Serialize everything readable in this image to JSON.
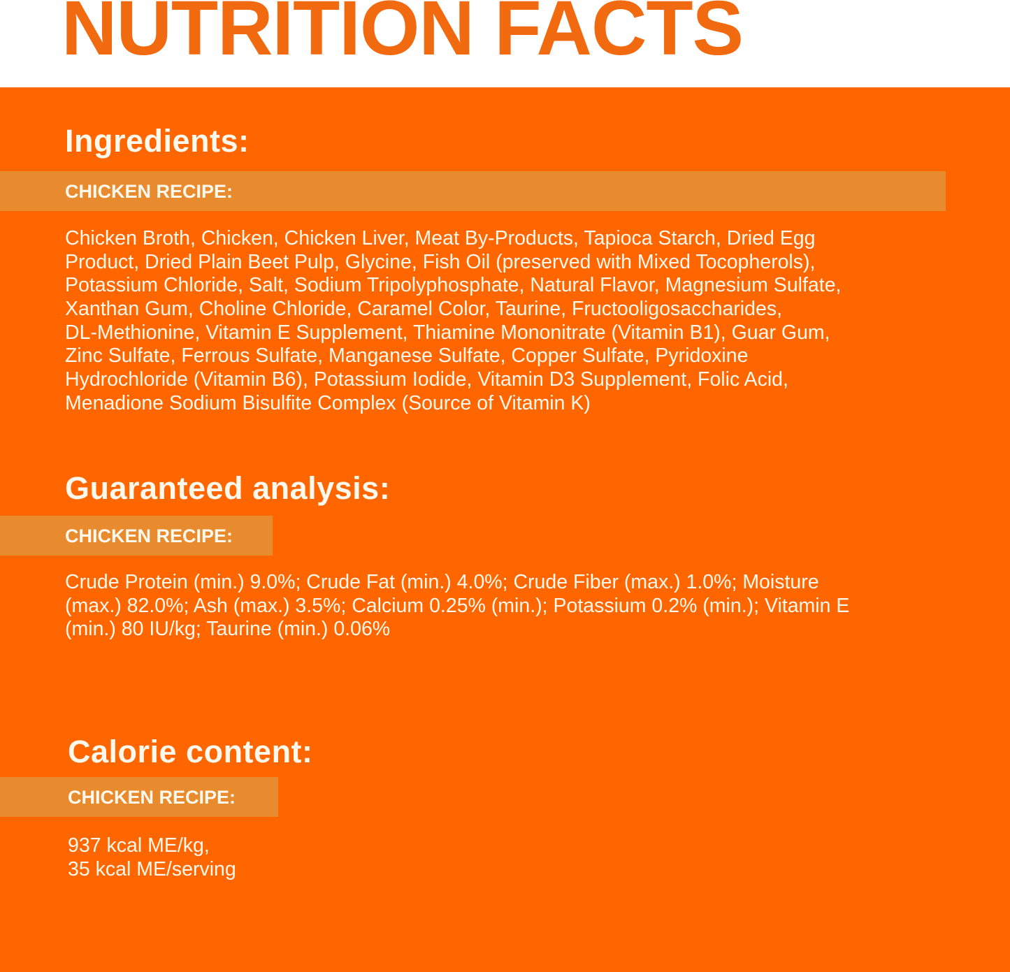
{
  "title": "NUTRITION FACTS",
  "colors": {
    "brand_orange": "#FF6600",
    "band": "#E88B2E",
    "title_orange": "#F26A10",
    "text": "#FFF8EC"
  },
  "ingredients": {
    "heading": "Ingredients:",
    "recipe_label": "CHICKEN RECIPE:",
    "lines": [
      "Chicken Broth, Chicken, Chicken Liver, Meat By-Products, Tapioca Starch, Dried Egg",
      "Product, Dried Plain Beet Pulp, Glycine, Fish Oil (preserved with Mixed Tocopherols),",
      "Potassium Chloride, Salt, Sodium Tripolyphosphate, Natural Flavor, Magnesium Sulfate,",
      "Xanthan Gum, Choline Chloride, Caramel Color, Taurine, Fructooligosaccharides,",
      "DL-Methionine, Vitamin E Supplement, Thiamine Mononitrate (Vitamin B1), Guar Gum,",
      "Zinc Sulfate, Ferrous Sulfate, Manganese Sulfate, Copper Sulfate, Pyridoxine",
      "Hydrochloride (Vitamin B6), Potassium Iodide, Vitamin D3 Supplement, Folic Acid,",
      "Menadione Sodium Bisulfite Complex (Source of Vitamin K)"
    ]
  },
  "guaranteed_analysis": {
    "heading": "Guaranteed analysis:",
    "recipe_label": "CHICKEN RECIPE:",
    "lines": [
      "Crude Protein (min.) 9.0%; Crude Fat (min.) 4.0%; Crude Fiber (max.) 1.0%; Moisture",
      "(max.) 82.0%; Ash (max.) 3.5%; Calcium 0.25% (min.); Potassium 0.2% (min.); Vitamin E",
      "(min.) 80 IU/kg; Taurine (min.) 0.06%"
    ]
  },
  "calorie_content": {
    "heading": "Calorie content:",
    "recipe_label": "CHICKEN RECIPE:",
    "lines": [
      "937 kcal ME/kg,",
      "35 kcal ME/serving"
    ]
  }
}
